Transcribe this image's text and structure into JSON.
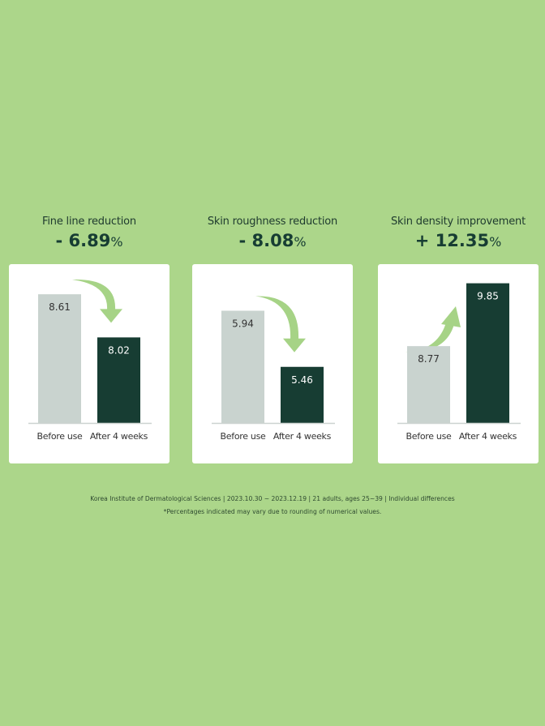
{
  "colors": {
    "background": "#acd68a",
    "before_bar": "#c9d3cf",
    "after_bar": "#173d33",
    "arrow": "#a6d386"
  },
  "chart_data": [
    {
      "type": "bar",
      "title": "Fine line reduction",
      "change_sign": "-",
      "change_value": "6.89",
      "change_unit": "%",
      "categories": [
        "Before use",
        "After 4 weeks"
      ],
      "values": [
        8.61,
        8.02
      ],
      "value_labels": [
        "8.61",
        "8.02"
      ],
      "ylim": [
        6.85,
        8.8
      ],
      "arrow": "down",
      "grid": false
    },
    {
      "type": "bar",
      "title": "Skin roughness reduction",
      "change_sign": "-",
      "change_value": "8.08",
      "change_unit": "%",
      "categories": [
        "Before use",
        "After 4 weeks"
      ],
      "values": [
        5.94,
        5.46
      ],
      "value_labels": [
        "5.94",
        "5.46"
      ],
      "ylim": [
        4.98,
        6.2
      ],
      "arrow": "down",
      "grid": false
    },
    {
      "type": "bar",
      "title": "Skin density improvement",
      "change_sign": "+",
      "change_value": "12.35",
      "change_unit": "%",
      "categories": [
        "Before use",
        "After 4 weeks"
      ],
      "values": [
        8.77,
        9.85
      ],
      "value_labels": [
        "8.77",
        "9.85"
      ],
      "ylim": [
        7.45,
        9.9
      ],
      "arrow": "up",
      "grid": false
    }
  ],
  "footer": {
    "source": "Korea Institute of Dermatological Sciences | 2023.10.30 ~ 2023.12.19 | 21 adults, ages 25~39 | Individual differences",
    "note": "*Percentages indicated may vary due to rounding of numerical values."
  }
}
